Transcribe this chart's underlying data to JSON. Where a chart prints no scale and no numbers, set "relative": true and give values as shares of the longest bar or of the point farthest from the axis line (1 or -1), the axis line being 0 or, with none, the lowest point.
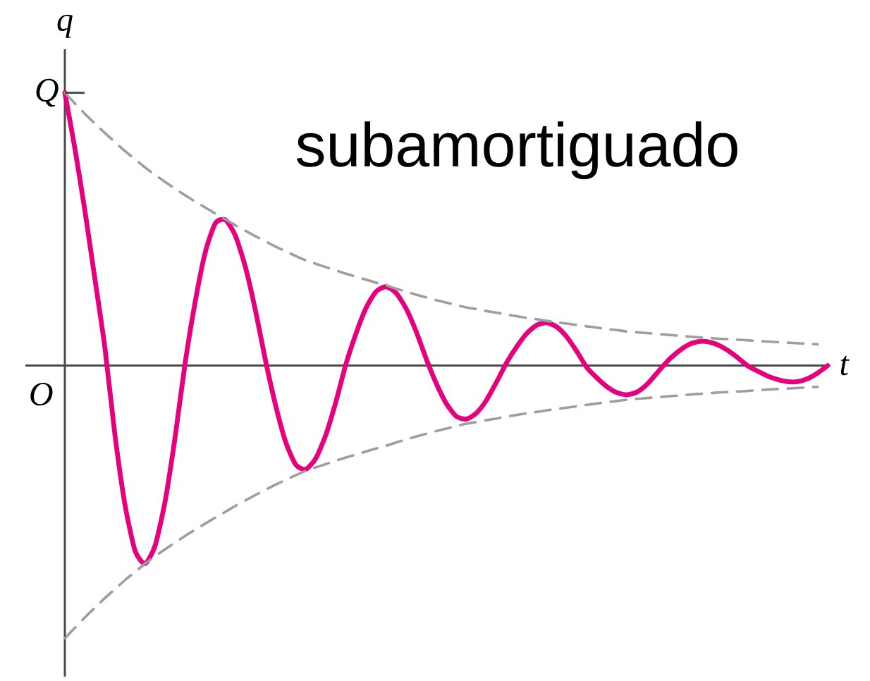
{
  "chart_data": {
    "type": "line",
    "relative": true,
    "xlabel": "t",
    "ylabel": "q",
    "annotations": [
      "subamortiguado",
      "Q",
      "O"
    ],
    "categories": [
      null,
      null,
      null,
      null,
      null,
      null,
      null,
      null,
      null,
      null,
      null,
      null,
      null,
      null,
      null,
      null,
      null,
      null,
      null,
      null,
      null,
      null,
      null,
      null,
      null,
      null,
      null,
      null,
      null,
      null,
      null,
      null,
      null,
      null,
      null,
      null,
      null,
      null,
      null,
      null,
      null,
      null,
      null,
      null,
      null,
      null,
      null,
      null,
      null,
      null,
      null,
      null,
      null,
      null,
      null,
      null,
      null,
      null,
      null,
      null,
      null,
      null,
      null,
      null,
      null,
      null,
      null,
      null,
      null,
      null,
      null,
      null,
      null,
      null,
      null,
      null,
      null
    ],
    "series": [
      {
        "color": "#e5007e",
        "line_style": "solid",
        "values": [
          1.0,
          0.796,
          0.567,
          0.316,
          0.062,
          -0.257,
          -0.512,
          -0.679,
          -0.726,
          -0.659,
          -0.495,
          -0.258,
          0.014,
          0.237,
          0.417,
          0.522,
          0.534,
          0.475,
          0.36,
          0.2,
          0.017,
          -0.146,
          -0.28,
          -0.363,
          -0.38,
          -0.34,
          -0.254,
          -0.133,
          0.005,
          0.117,
          0.211,
          0.271,
          0.289,
          0.266,
          0.209,
          0.125,
          0.025,
          -0.065,
          -0.139,
          -0.186,
          -0.196,
          -0.174,
          -0.127,
          -0.061,
          0.01,
          0.068,
          0.117,
          0.148,
          0.157,
          0.142,
          0.105,
          0.052,
          -0.007,
          -0.045,
          -0.077,
          -0.099,
          -0.107,
          -0.097,
          -0.069,
          -0.027,
          0.015,
          0.048,
          0.074,
          0.087,
          0.088,
          0.077,
          0.057,
          0.03,
          0.0,
          -0.02,
          -0.038,
          -0.051,
          -0.059,
          -0.059,
          -0.048,
          -0.027,
          0.0
        ]
      },
      {
        "color": "#9e9e9e",
        "line_style": "dashed",
        "values": [
          1.0,
          0.961,
          0.923,
          0.887,
          0.852,
          0.819,
          0.786,
          0.756,
          0.726,
          0.699,
          0.673,
          0.648,
          0.624,
          0.601,
          0.579,
          0.557,
          0.536,
          0.514,
          0.494,
          0.474,
          0.455,
          0.436,
          0.419,
          0.402,
          0.386,
          0.373,
          0.361,
          0.349,
          0.337,
          0.326,
          0.315,
          0.304,
          0.294,
          0.282,
          0.271,
          0.26,
          0.25,
          0.24,
          0.231,
          0.222,
          0.213,
          0.207,
          0.2,
          0.194,
          0.187,
          0.181,
          0.175,
          0.17,
          0.164,
          0.159,
          0.154,
          0.149,
          0.144,
          0.139,
          0.134,
          0.13,
          0.125,
          0.122,
          0.119,
          0.116,
          0.113,
          0.11,
          0.107,
          0.104,
          0.102,
          0.099,
          0.097,
          0.095,
          0.093,
          0.09,
          0.088,
          0.086,
          0.084,
          0.082,
          0.08,
          0.078,
          null
        ]
      },
      {
        "color": "#9e9e9e",
        "line_style": "dashed",
        "values": [
          -1.0,
          -0.961,
          -0.923,
          -0.887,
          -0.852,
          -0.819,
          -0.786,
          -0.756,
          -0.726,
          -0.699,
          -0.673,
          -0.648,
          -0.624,
          -0.601,
          -0.579,
          -0.557,
          -0.536,
          -0.514,
          -0.494,
          -0.474,
          -0.455,
          -0.436,
          -0.419,
          -0.402,
          -0.386,
          -0.373,
          -0.361,
          -0.349,
          -0.337,
          -0.326,
          -0.315,
          -0.304,
          -0.294,
          -0.282,
          -0.271,
          -0.26,
          -0.25,
          -0.24,
          -0.231,
          -0.222,
          -0.213,
          -0.207,
          -0.2,
          -0.194,
          -0.187,
          -0.181,
          -0.175,
          -0.17,
          -0.164,
          -0.159,
          -0.154,
          -0.149,
          -0.144,
          -0.139,
          -0.134,
          -0.13,
          -0.125,
          -0.122,
          -0.119,
          -0.116,
          -0.113,
          -0.11,
          -0.107,
          -0.104,
          -0.102,
          -0.099,
          -0.097,
          -0.095,
          -0.093,
          -0.09,
          -0.088,
          -0.086,
          -0.084,
          -0.082,
          -0.08,
          -0.078,
          null
        ]
      }
    ]
  }
}
